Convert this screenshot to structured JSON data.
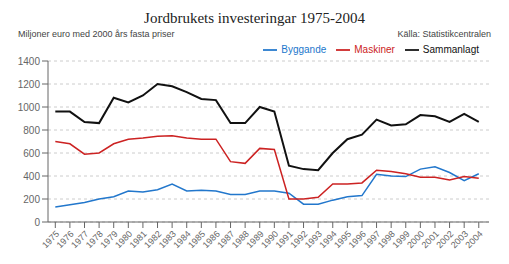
{
  "chart_data": {
    "type": "line",
    "title": "Jordbrukets investeringar 1975-2004",
    "y_label": "Miljoner euro med 2000 års fasta priser",
    "annotations": [
      "Källa: Statistikcentralen"
    ],
    "x": [
      1975,
      1976,
      1977,
      1978,
      1979,
      1980,
      1981,
      1982,
      1983,
      1984,
      1985,
      1986,
      1987,
      1988,
      1989,
      1990,
      1991,
      1992,
      1993,
      1994,
      1995,
      1996,
      1997,
      1998,
      1999,
      2000,
      2001,
      2002,
      2003,
      2004
    ],
    "xlim": [
      1974.5,
      2004.7
    ],
    "xticks": [
      1975,
      1976,
      1977,
      1978,
      1979,
      1980,
      1981,
      1982,
      1983,
      1984,
      1985,
      1986,
      1987,
      1988,
      1989,
      1990,
      1991,
      1992,
      1993,
      1994,
      1995,
      1996,
      1997,
      1998,
      1999,
      2000,
      2001,
      2002,
      2003,
      2004
    ],
    "ylim": [
      0,
      1400
    ],
    "yticks": [
      0,
      200,
      400,
      600,
      800,
      1000,
      1200,
      1400
    ],
    "grid": true,
    "legend": "upper right",
    "series": [
      {
        "name": "Sammanlagt",
        "color": "#111111",
        "values": [
          960,
          960,
          870,
          860,
          1080,
          1040,
          1100,
          1200,
          1180,
          1130,
          1070,
          1060,
          860,
          860,
          1000,
          960,
          490,
          460,
          450,
          600,
          720,
          760,
          890,
          840,
          850,
          930,
          920,
          870,
          940,
          870
        ]
      },
      {
        "name": "Byggande",
        "color": "#2277cc",
        "values": [
          130,
          150,
          170,
          200,
          220,
          270,
          260,
          280,
          330,
          270,
          275,
          270,
          240,
          240,
          270,
          270,
          250,
          155,
          155,
          190,
          220,
          230,
          415,
          400,
          395,
          460,
          480,
          430,
          360,
          420
        ]
      },
      {
        "name": "Maskiner",
        "color": "#cc2222",
        "values": [
          700,
          680,
          590,
          600,
          680,
          720,
          730,
          745,
          750,
          730,
          720,
          720,
          525,
          510,
          640,
          630,
          200,
          200,
          215,
          330,
          330,
          340,
          450,
          440,
          420,
          390,
          390,
          365,
          395,
          380
        ]
      }
    ]
  }
}
